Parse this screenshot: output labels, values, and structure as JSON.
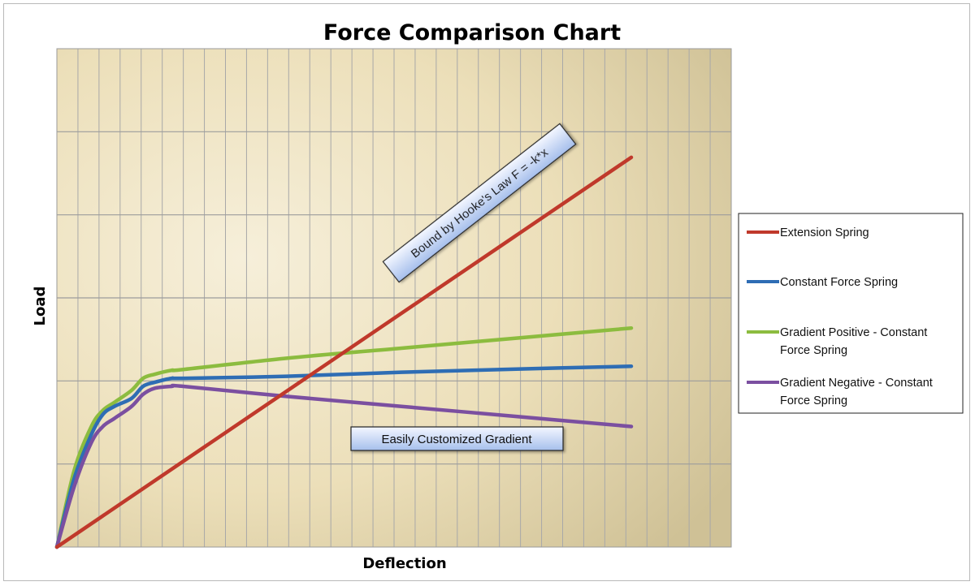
{
  "chart_data": {
    "type": "line",
    "title": "Force Comparison Chart",
    "xlabel": "Deflection",
    "ylabel": "Load",
    "xlim": [
      0,
      100
    ],
    "ylim": [
      0,
      100
    ],
    "grid": true,
    "legend_position": "right",
    "series": [
      {
        "name": "Extension Spring",
        "color": "#c0392b",
        "x": [
          0,
          100
        ],
        "y": [
          0,
          97
        ]
      },
      {
        "name": "Constant Force Spring",
        "color": "#2e6db4",
        "x": [
          0,
          3,
          6,
          8,
          10,
          13,
          15,
          17,
          20,
          22,
          40,
          60,
          80,
          100
        ],
        "y": [
          0,
          17,
          28,
          33,
          35,
          37,
          40,
          41,
          42,
          42,
          42.5,
          43.5,
          44.3,
          45
        ]
      },
      {
        "name": "Gradient Positive -    Constant Force Spring",
        "color": "#8cbc3f",
        "x": [
          0,
          3,
          6,
          8,
          10,
          13,
          15,
          17,
          20,
          22,
          40,
          60,
          80,
          100
        ],
        "y": [
          0,
          19,
          30,
          34,
          36,
          39,
          42,
          43,
          44,
          44.2,
          47,
          49.5,
          52,
          54.5
        ]
      },
      {
        "name": "Gradient Negative - Constant Force Spring",
        "color": "#7b4fa0",
        "x": [
          0,
          3,
          6,
          8,
          10,
          13,
          15,
          17,
          20,
          22,
          40,
          60,
          80,
          100
        ],
        "y": [
          0,
          15,
          26,
          30,
          32,
          35,
          38,
          39.5,
          40,
          40,
          37.5,
          35,
          32.5,
          30
        ]
      }
    ],
    "annotations": [
      {
        "text": "Bound by Hooke's Law F = -k*x"
      },
      {
        "text": "Easily Customized Gradient"
      }
    ]
  },
  "colors": {
    "plot_bg_center": "#f3ead0",
    "plot_bg_edge": "#cdbf93",
    "grid": "#a9a9a9",
    "annotation_fill_top": "#f2f6ff",
    "annotation_fill_bottom": "#a8c0ec"
  }
}
